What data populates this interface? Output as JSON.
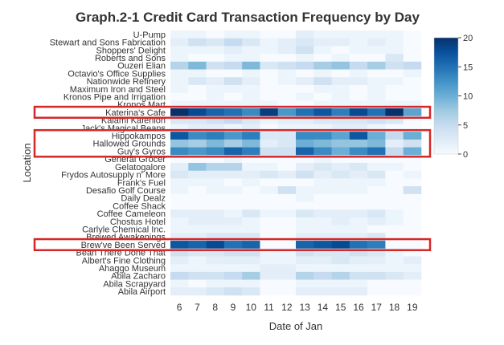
{
  "chart_data": {
    "type": "heatmap",
    "title": "Graph.2-1 Credit Card Transaction Frequency by Day",
    "xlabel": "Date of Jan",
    "ylabel": "Location",
    "x": [
      6,
      7,
      8,
      9,
      10,
      11,
      12,
      13,
      14,
      15,
      16,
      17,
      18,
      19
    ],
    "y": [
      "U-Pump",
      "Stewart and Sons Fabrication",
      "Shoppers' Delight",
      "Roberts and Sons",
      "Ouzeri Elian",
      "Octavio's Office Supplies",
      "Nationwide Refinery",
      "Maximum Iron and Steel",
      "Kronos Pipe and Irrigation",
      "Kronos Mart",
      "Katerina's Cafe",
      "Kalami Kafenion",
      "Jack's Magical Beans",
      "Hippokampos",
      "Hallowed Grounds",
      "Guy's Gyros",
      "General Grocer",
      "Gelatogalore",
      "Frydos Autosupply n' More",
      "Frank's Fuel",
      "Desafio Golf Course",
      "Daily Dealz",
      "Coffee Shack",
      "Coffee Cameleon",
      "Chostus Hotel",
      "Carlyle Chemical Inc.",
      "Brewed Awakenings",
      "Brew've Been Served",
      "Bean There Done That",
      "Albert's Fine Clothing",
      "Ahaggo Museum",
      "Abila Zacharo",
      "Abila Scrapyard",
      "Abila Airport"
    ],
    "z": [
      [
        1,
        1,
        0,
        1,
        1,
        0,
        0,
        2,
        1,
        1,
        1,
        1,
        1,
        0
      ],
      [
        2,
        4,
        3,
        5,
        3,
        1,
        2,
        3,
        2,
        2,
        1,
        2,
        1,
        0
      ],
      [
        1,
        1,
        1,
        2,
        1,
        1,
        2,
        4,
        1,
        0,
        1,
        1,
        1,
        0
      ],
      [
        1,
        0,
        0,
        1,
        1,
        0,
        0,
        1,
        0,
        1,
        0,
        0,
        3,
        0
      ],
      [
        6,
        9,
        4,
        5,
        9,
        3,
        4,
        5,
        7,
        8,
        5,
        7,
        4,
        5
      ],
      [
        1,
        1,
        0,
        0,
        1,
        0,
        1,
        0,
        1,
        0,
        1,
        0,
        0,
        1
      ],
      [
        1,
        3,
        2,
        4,
        2,
        0,
        1,
        2,
        4,
        2,
        2,
        1,
        1,
        0
      ],
      [
        1,
        0,
        1,
        1,
        1,
        0,
        0,
        0,
        1,
        1,
        0,
        1,
        0,
        0
      ],
      [
        0,
        0,
        1,
        0,
        1,
        0,
        0,
        1,
        0,
        1,
        0,
        1,
        0,
        0
      ],
      [
        1,
        1,
        1,
        1,
        1,
        1,
        0,
        0,
        1,
        1,
        1,
        1,
        1,
        1
      ],
      [
        20,
        18,
        16,
        15,
        13,
        19,
        12,
        15,
        17,
        14,
        18,
        15,
        20,
        11
      ],
      [
        3,
        3,
        4,
        5,
        3,
        1,
        2,
        2,
        3,
        3,
        3,
        4,
        3,
        0
      ],
      [
        1,
        2,
        2,
        1,
        2,
        0,
        1,
        1,
        1,
        2,
        2,
        1,
        0,
        0
      ],
      [
        17,
        13,
        14,
        12,
        14,
        3,
        3,
        13,
        13,
        11,
        17,
        10,
        5,
        10
      ],
      [
        8,
        7,
        9,
        7,
        9,
        2,
        3,
        10,
        9,
        8,
        8,
        9,
        2,
        4
      ],
      [
        13,
        12,
        13,
        16,
        14,
        4,
        4,
        16,
        13,
        10,
        13,
        15,
        5,
        10
      ],
      [
        0,
        0,
        0,
        1,
        0,
        0,
        0,
        0,
        1,
        0,
        0,
        0,
        0,
        0
      ],
      [
        2,
        8,
        6,
        6,
        1,
        1,
        0,
        2,
        3,
        2,
        3,
        1,
        1,
        0
      ],
      [
        3,
        2,
        2,
        2,
        2,
        3,
        2,
        4,
        2,
        3,
        2,
        3,
        0,
        1
      ],
      [
        1,
        1,
        1,
        0,
        1,
        0,
        0,
        0,
        1,
        1,
        1,
        1,
        0,
        0
      ],
      [
        1,
        0,
        1,
        1,
        0,
        1,
        4,
        1,
        1,
        1,
        1,
        0,
        0,
        4
      ],
      [
        0,
        0,
        0,
        0,
        0,
        0,
        0,
        1,
        0,
        0,
        0,
        0,
        0,
        0
      ],
      [
        0,
        0,
        0,
        0,
        0,
        0,
        0,
        0,
        0,
        0,
        0,
        0,
        0,
        0
      ],
      [
        2,
        2,
        2,
        1,
        3,
        1,
        1,
        3,
        2,
        2,
        2,
        3,
        1,
        0
      ],
      [
        1,
        2,
        2,
        2,
        1,
        0,
        0,
        1,
        1,
        2,
        1,
        2,
        1,
        0
      ],
      [
        1,
        1,
        1,
        1,
        1,
        0,
        0,
        1,
        1,
        1,
        1,
        0,
        0,
        0
      ],
      [
        2,
        2,
        3,
        3,
        3,
        0,
        0,
        2,
        2,
        2,
        2,
        3,
        0,
        0
      ],
      [
        17,
        16,
        18,
        15,
        16,
        0,
        0,
        16,
        17,
        18,
        15,
        14,
        0,
        0
      ],
      [
        4,
        3,
        3,
        4,
        4,
        1,
        1,
        4,
        3,
        3,
        4,
        3,
        1,
        0
      ],
      [
        2,
        1,
        2,
        2,
        2,
        1,
        1,
        2,
        2,
        3,
        2,
        2,
        1,
        2
      ],
      [
        1,
        1,
        1,
        1,
        1,
        2,
        2,
        1,
        1,
        1,
        1,
        1,
        1,
        1
      ],
      [
        5,
        4,
        4,
        5,
        7,
        2,
        2,
        6,
        5,
        6,
        4,
        4,
        3,
        2
      ],
      [
        1,
        0,
        1,
        1,
        1,
        0,
        0,
        1,
        1,
        1,
        1,
        0,
        0,
        0
      ],
      [
        2,
        2,
        3,
        4,
        3,
        0,
        0,
        2,
        2,
        2,
        2,
        0,
        0,
        0
      ]
    ],
    "zlim": [
      0,
      20
    ],
    "colorbar": {
      "ticks": [
        0,
        5,
        10,
        15,
        20
      ],
      "placement": "right"
    },
    "colorscale": [
      "#f7fbff",
      "#deebf7",
      "#c6dbef",
      "#9ecae1",
      "#6baed6",
      "#4292c6",
      "#2171b5",
      "#08519c",
      "#08306b"
    ],
    "highlights": [
      {
        "rows": [
          "Katerina's Cafe"
        ],
        "color": "#d62728"
      },
      {
        "rows": [
          "Hippokampos",
          "Hallowed Grounds",
          "Guy's Gyros"
        ],
        "color": "#d62728"
      },
      {
        "rows": [
          "Brew've Been Served"
        ],
        "color": "#d62728"
      }
    ]
  }
}
